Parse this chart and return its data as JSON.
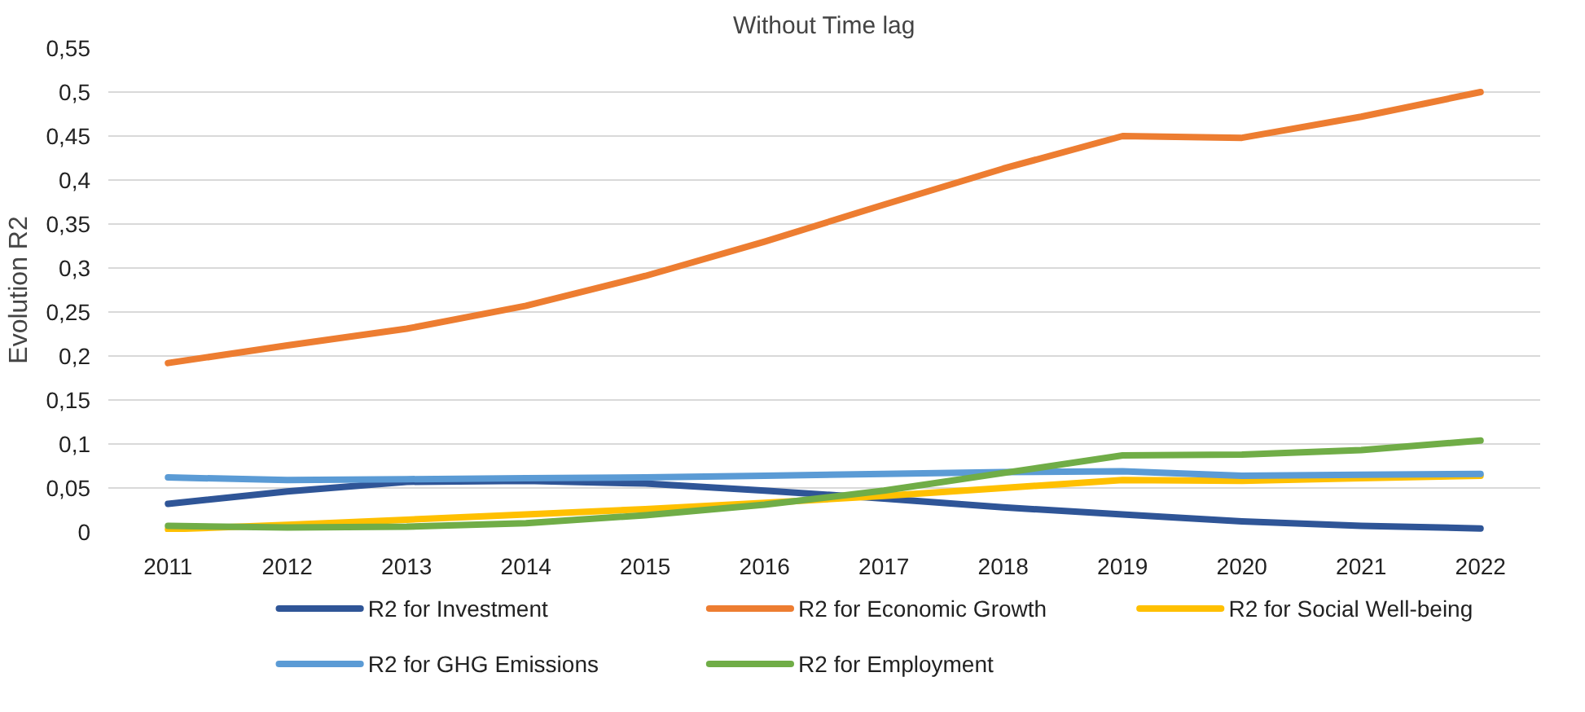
{
  "chart_data": {
    "type": "line",
    "title": "Without Time lag",
    "ylabel": "Evolution R2",
    "categories": [
      "2011",
      "2012",
      "2013",
      "2014",
      "2015",
      "2016",
      "2017",
      "2018",
      "2019",
      "2020",
      "2021",
      "2022"
    ],
    "series": [
      {
        "name": "R2 for Investment",
        "color": "#2f5597",
        "values": [
          0.032,
          0.046,
          0.057,
          0.058,
          0.055,
          0.047,
          0.038,
          0.028,
          0.02,
          0.012,
          0.007,
          0.004
        ]
      },
      {
        "name": "R2 for Economic Growth",
        "color": "#ed7d31",
        "values": [
          0.192,
          0.212,
          0.231,
          0.257,
          0.291,
          0.33,
          0.372,
          0.413,
          0.45,
          0.448,
          0.472,
          0.5
        ]
      },
      {
        "name": "R2 for Social Well-being",
        "color": "#ffc000",
        "values": [
          0.003,
          0.008,
          0.014,
          0.02,
          0.026,
          0.033,
          0.041,
          0.05,
          0.059,
          0.058,
          0.061,
          0.064
        ]
      },
      {
        "name": "R2 for GHG Emissions",
        "color": "#5b9bd5",
        "values": [
          0.062,
          0.059,
          0.06,
          0.061,
          0.062,
          0.064,
          0.066,
          0.068,
          0.069,
          0.064,
          0.065,
          0.066
        ]
      },
      {
        "name": "R2 for Employment",
        "color": "#70ad47",
        "values": [
          0.007,
          0.005,
          0.006,
          0.01,
          0.019,
          0.031,
          0.047,
          0.067,
          0.087,
          0.088,
          0.093,
          0.104
        ]
      }
    ],
    "ylim": [
      0,
      0.55
    ],
    "yticks": [
      0,
      {
        "value": 0.05,
        "label": "0,05"
      },
      {
        "value": 0.1,
        "label": "0,1"
      },
      {
        "value": 0.15,
        "label": "0,15"
      },
      {
        "value": 0.2,
        "label": "0,2"
      },
      {
        "value": 0.25,
        "label": "0,25"
      },
      {
        "value": 0.3,
        "label": "0,3"
      },
      {
        "value": 0.35,
        "label": "0,35"
      },
      {
        "value": 0.4,
        "label": "0,4"
      },
      {
        "value": 0.45,
        "label": "0,45"
      },
      {
        "value": 0.5,
        "label": "0,5"
      },
      {
        "value": 0.55,
        "label": "0,55"
      }
    ],
    "grid": "y",
    "legend": "bottom",
    "marker": "none",
    "line_style": "solid"
  }
}
